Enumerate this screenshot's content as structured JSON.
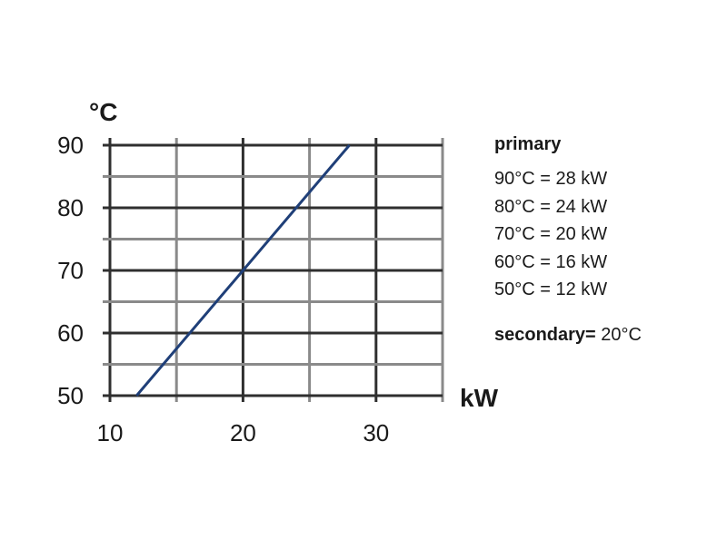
{
  "chart_data": {
    "type": "line",
    "ylabel": "°C",
    "xlabel": "kW",
    "xlim": [
      10,
      35
    ],
    "ylim": [
      50,
      90
    ],
    "x_ticks": [
      "10",
      "20",
      "30"
    ],
    "y_ticks": [
      "50",
      "60",
      "70",
      "80",
      "90"
    ],
    "grid": true,
    "legend_position": "right",
    "series": [
      {
        "color": "#1f3f78",
        "x": [
          12,
          28
        ],
        "y": [
          50,
          90
        ]
      }
    ]
  },
  "legend": {
    "title": "primary",
    "items": [
      "90°C = 28 kW",
      "80°C = 24 kW",
      "70°C = 20 kW",
      "60°C = 16 kW",
      "50°C = 12 kW"
    ],
    "secondary_label": "secondary=",
    "secondary_value": " 20°C"
  }
}
